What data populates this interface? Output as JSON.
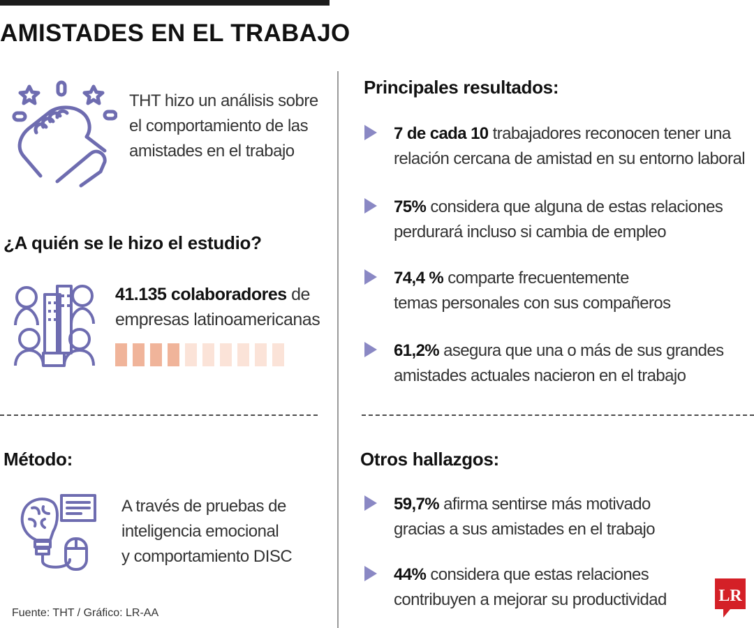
{
  "title": "AMISTADES EN EL TRABAJO",
  "intro": {
    "icon": "handshake-icon",
    "lines": [
      "THT hizo un análisis sobre",
      "el comportamiento de las",
      "amistades en el trabajo"
    ]
  },
  "study": {
    "heading": "¿A quién se le hizo el estudio?",
    "icon": "people-city-icon",
    "count": "41.135 colaboradores",
    "count_suffix": " de",
    "line2": "empresas latinoamericanas",
    "bar_colors": [
      "#f0b49a",
      "#f0b49a",
      "#f0b49a",
      "#f0b49a",
      "#fbe3d8",
      "#fbe3d8",
      "#fbe3d8",
      "#fbe3d8",
      "#fbe3d8",
      "#fbe3d8"
    ]
  },
  "method": {
    "heading": "Método:",
    "icon": "brain-computer-icon",
    "lines": [
      "A través de pruebas de",
      "inteligencia emocional",
      "y comportamiento DISC"
    ]
  },
  "results": {
    "heading": "Principales resultados:",
    "items": [
      {
        "bold": "7 de cada 10",
        "line1": " trabajadores reconocen tener una",
        "line2": "relación cercana de amistad en su entorno laboral"
      },
      {
        "bold": "75%",
        "line1": " considera que alguna de estas relaciones",
        "line2": "perdurará incluso si cambia de empleo"
      },
      {
        "bold": "74,4 %",
        "line1": " comparte frecuentemente",
        "line2": "temas personales con sus compañeros"
      },
      {
        "bold": "61,2%",
        "line1": " asegura que una o más de sus grandes",
        "line2": "amistades actuales nacieron en el trabajo"
      }
    ]
  },
  "others": {
    "heading": "Otros hallazgos:",
    "items": [
      {
        "bold": "59,7%",
        "line1": " afirma sentirse más motivado",
        "line2": "gracias a sus amistades en el trabajo"
      },
      {
        "bold": "44%",
        "line1": " considera que estas relaciones",
        "line2": "contribuyen a mejorar su productividad"
      }
    ]
  },
  "source": "Fuente: THT / Gráfico: LR-AA",
  "logo_text": "LR",
  "colors": {
    "accent": "#8a88c4",
    "icon": "#6e6cb0",
    "logo": "#d42027"
  }
}
